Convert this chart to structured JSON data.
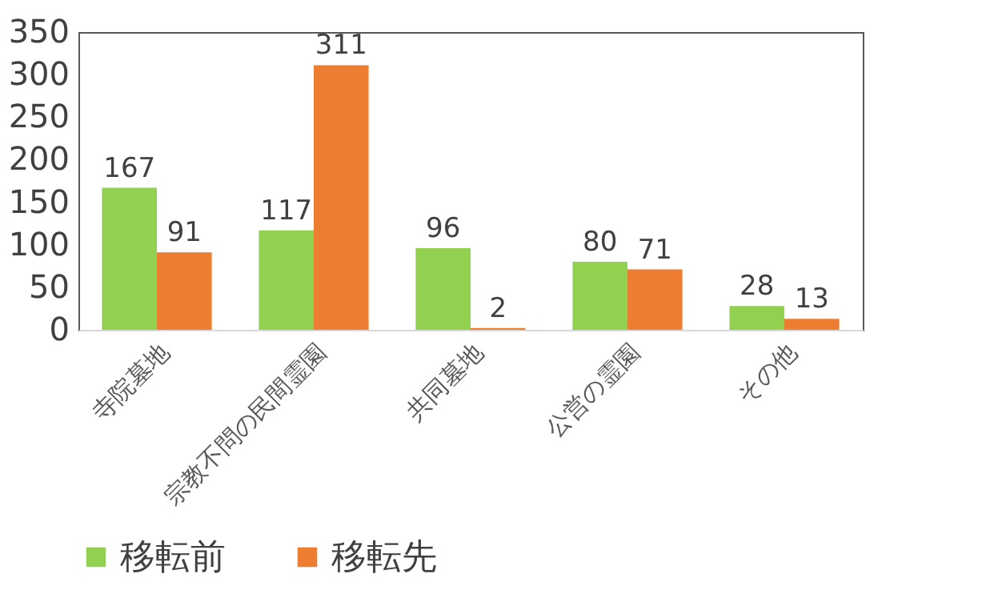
{
  "chart_data": {
    "type": "bar",
    "categories": [
      "寺院墓地",
      "宗教不問の民間霊園",
      "共同墓地",
      "公営の霊園",
      "その他"
    ],
    "series": [
      {
        "name": "移転前",
        "color": "#92d050",
        "values": [
          167,
          117,
          96,
          80,
          28
        ]
      },
      {
        "name": "移転先",
        "color": "#ed7d31",
        "values": [
          91,
          311,
          2,
          71,
          13
        ]
      }
    ],
    "ylim": [
      0,
      350
    ],
    "yticks": [
      0,
      50,
      100,
      150,
      200,
      250,
      300,
      350
    ],
    "data_labels": true,
    "legend": "bottom",
    "grid": false
  }
}
